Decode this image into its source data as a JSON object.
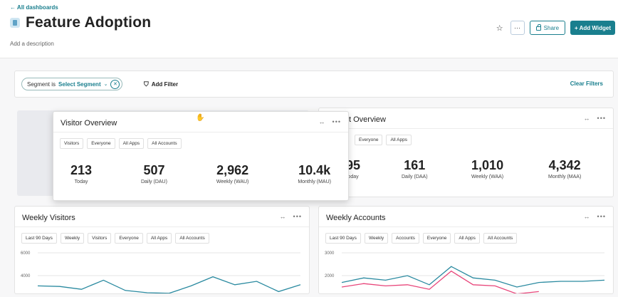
{
  "header": {
    "back_link": "← All dashboards",
    "title": "Feature Adoption",
    "description": "Add a description",
    "share_label": "Share",
    "more_label": "···",
    "add_widget_label": "+ Add Widget"
  },
  "filters": {
    "segment_prefix": "Segment is",
    "segment_value": "Select Segment",
    "add_filter": "Add Filter",
    "clear_filters": "Clear Filters"
  },
  "account_overview": {
    "title_partial": "t Overview",
    "chips": [
      "Everyone",
      "All Apps"
    ],
    "metrics": [
      {
        "value": "95",
        "label": "oday"
      },
      {
        "value": "161",
        "label": "Daily (DAA)"
      },
      {
        "value": "1,010",
        "label": "Weekly (WAA)"
      },
      {
        "value": "4,342",
        "label": "Monthly (MAA)"
      }
    ]
  },
  "visitor_overview": {
    "title": "Visitor Overview",
    "chips": [
      "Visitors",
      "Everyone",
      "All Apps",
      "All Accounts"
    ],
    "metrics": [
      {
        "value": "213",
        "label": "Today"
      },
      {
        "value": "507",
        "label": "Daily (DAU)"
      },
      {
        "value": "2,962",
        "label": "Weekly (WAU)"
      },
      {
        "value": "10.4k",
        "label": "Monthly (MAU)"
      }
    ]
  },
  "weekly_visitors": {
    "title": "Weekly Visitors",
    "chips": [
      "Last 90 Days",
      "Weekly",
      "Visitors",
      "Everyone",
      "All Apps",
      "All Accounts"
    ]
  },
  "weekly_accounts": {
    "title": "Weekly Accounts",
    "chips": [
      "Last 90 Days",
      "Weekly",
      "Accounts",
      "Everyone",
      "All Apps",
      "All Accounts"
    ]
  },
  "colors": {
    "accent": "#1a7f8e",
    "series_teal": "#2a8aa0",
    "series_pink": "#e8457a"
  },
  "chart_data": [
    {
      "type": "line",
      "yticks": [
        "6000",
        "4000"
      ],
      "ylim": [
        2000,
        6000
      ],
      "series": [
        {
          "values": [
            3100,
            3050,
            2800,
            3600,
            2700,
            2500,
            2450,
            3100,
            3900,
            3200,
            3500,
            2600,
            3200
          ]
        }
      ]
    },
    {
      "type": "line",
      "yticks": [
        "3000",
        "2000"
      ],
      "ylim": [
        1000,
        3000
      ],
      "series": [
        {
          "values": [
            1700,
            1900,
            1800,
            2000,
            1600,
            2400,
            1900,
            1800,
            1500,
            1700,
            1750,
            1750,
            1800
          ]
        },
        {
          "values": [
            1500,
            1650,
            1550,
            1600,
            1400,
            2200,
            1600,
            1550,
            1200,
            1300
          ]
        }
      ]
    }
  ]
}
